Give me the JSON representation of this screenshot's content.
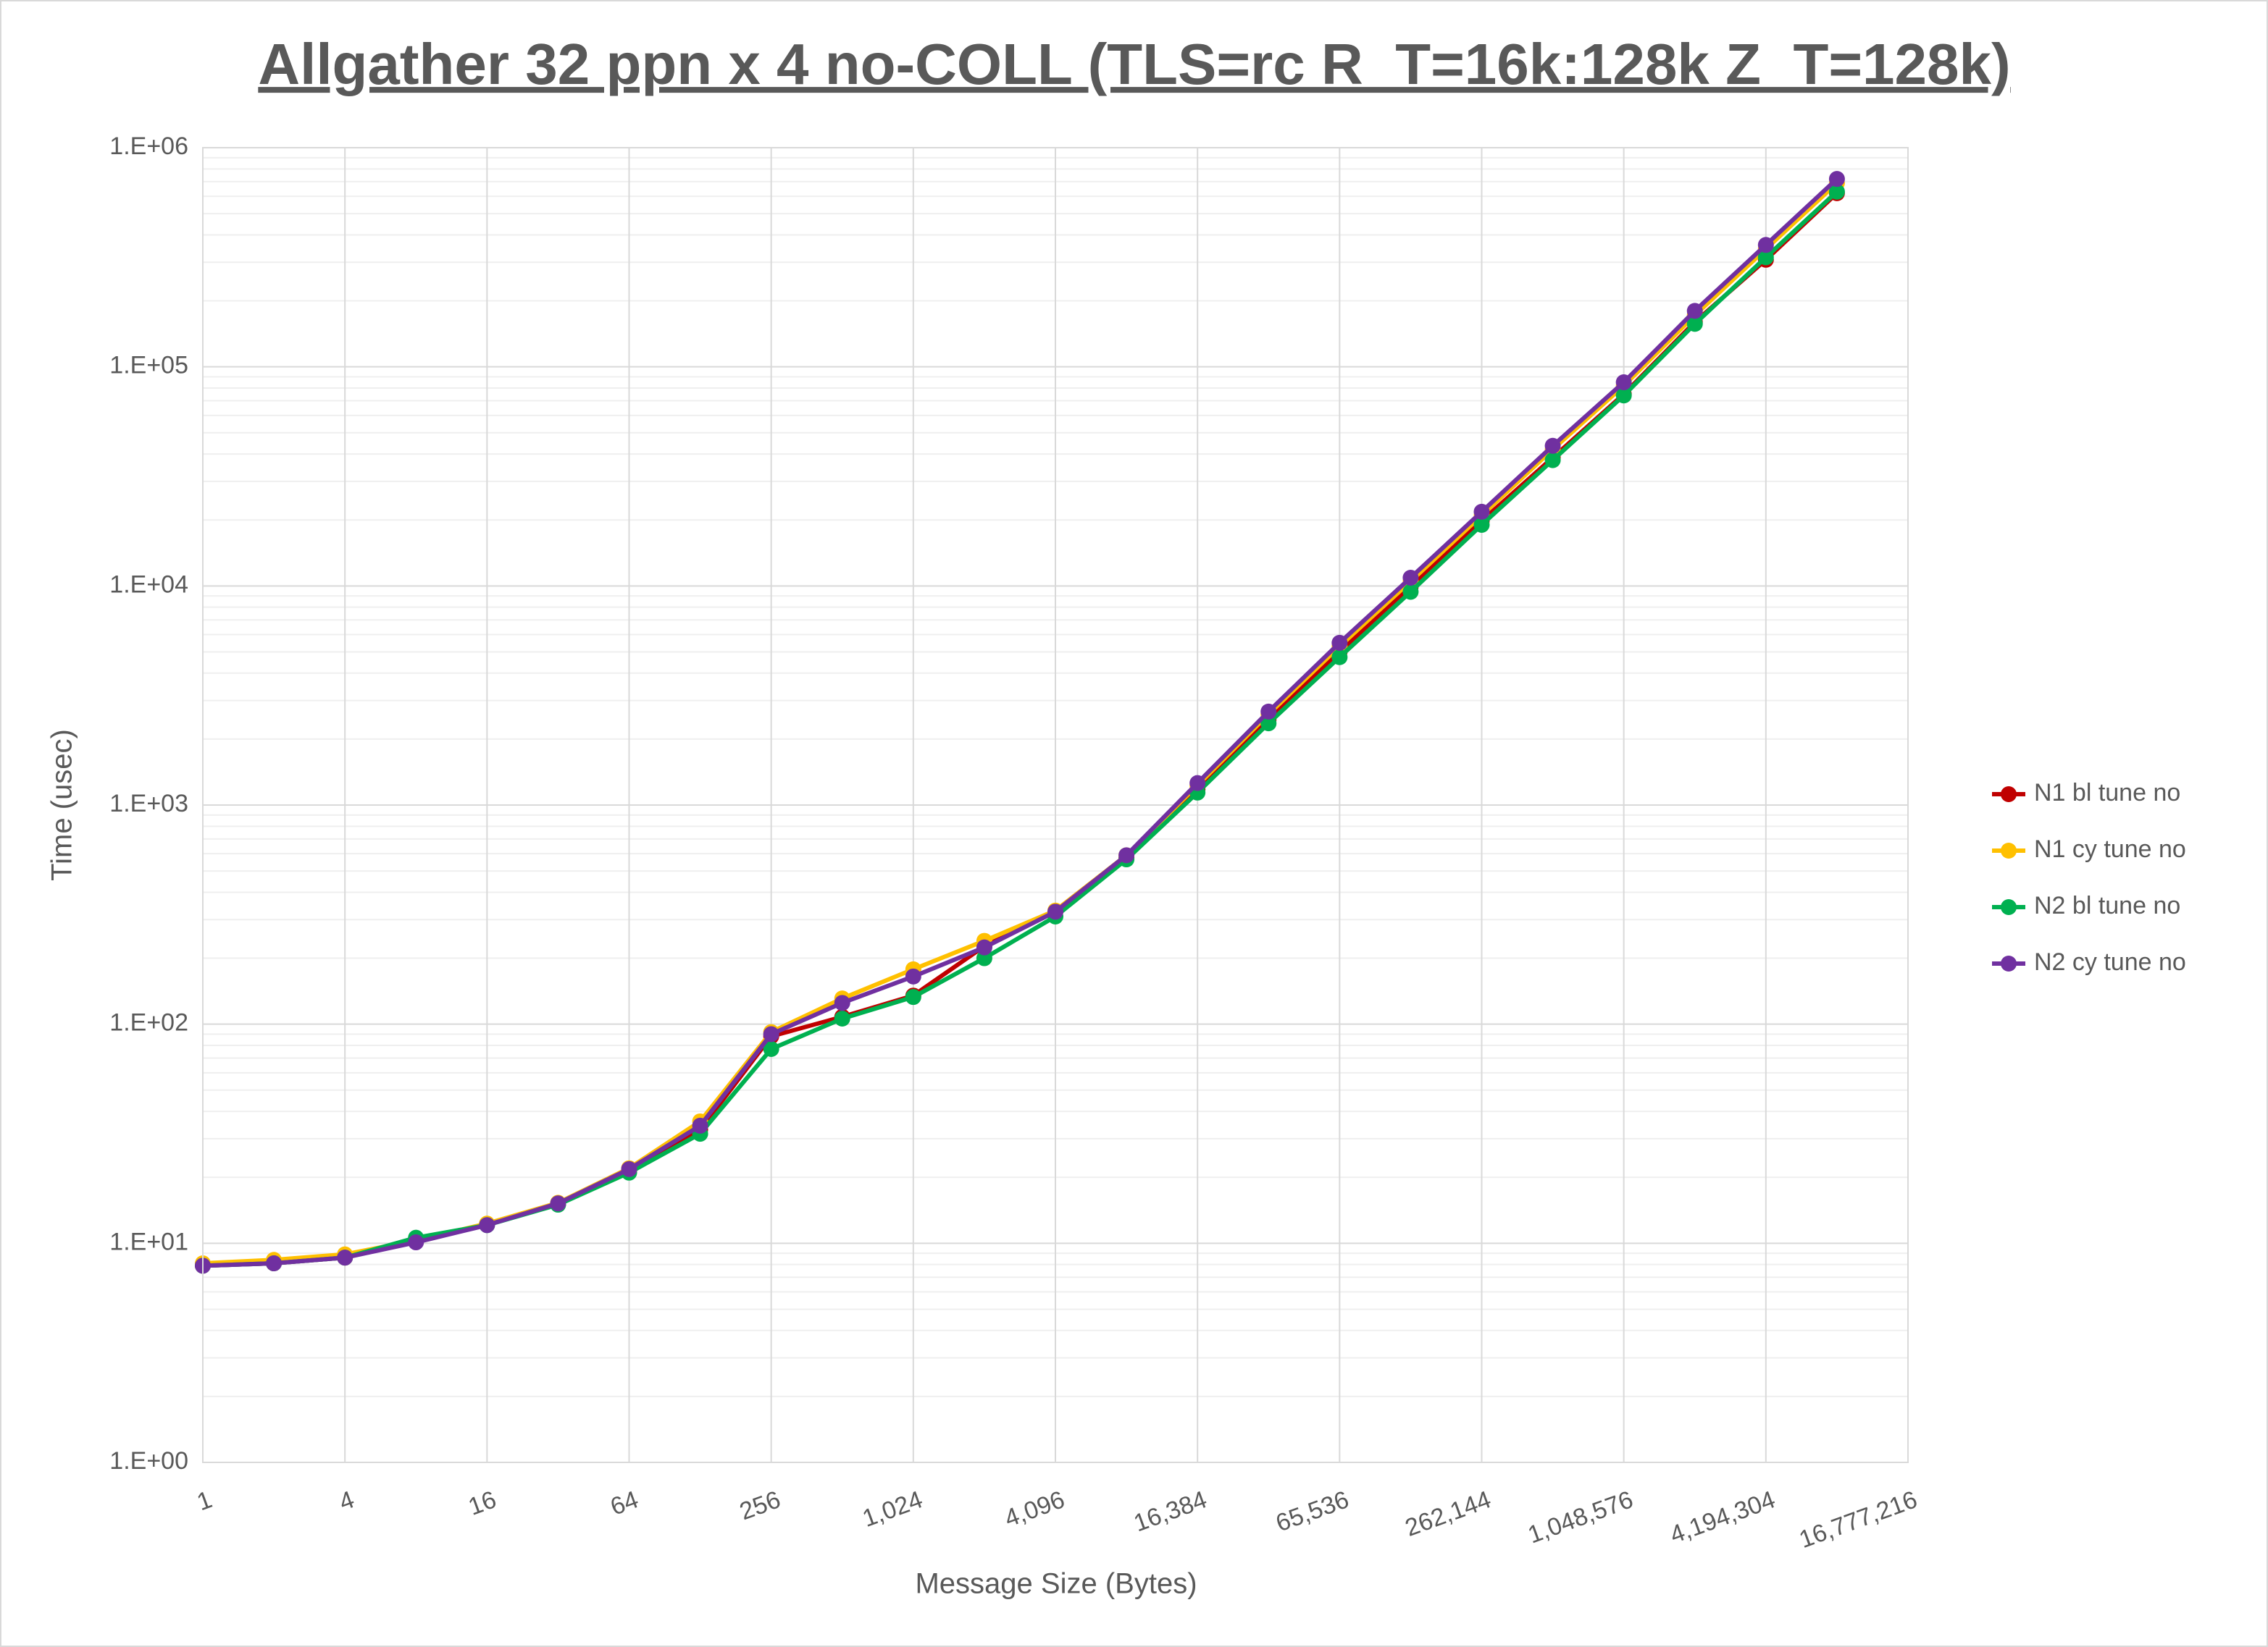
{
  "chart_data": {
    "type": "line",
    "title": "Allgather 32 ppn x 4 no-COLL (TLS=rc R_T=16k:128k Z_T=128k)",
    "x_label": "Message Size (Bytes)",
    "y_label": "Time (usec)",
    "x": [
      1,
      2,
      4,
      8,
      16,
      32,
      64,
      128,
      256,
      512,
      1024,
      2048,
      4096,
      8192,
      16384,
      32768,
      65536,
      131072,
      262144,
      524288,
      1048576,
      2097152,
      4194304,
      8388608
    ],
    "series": [
      {
        "name": "N1 bl tune no",
        "color": "#c00000",
        "values": [
          7.9,
          8.1,
          8.6,
          10.4,
          12.2,
          15.1,
          21.5,
          33,
          88,
          108,
          135,
          227,
          326,
          575,
          1180,
          2450,
          5000,
          9900,
          19800,
          38500,
          75000,
          160000,
          308000,
          620000
        ]
      },
      {
        "name": "N1 cy tune no",
        "color": "#ffc000",
        "values": [
          8.1,
          8.4,
          8.9,
          10.3,
          12.3,
          15.3,
          22,
          36,
          92,
          131,
          178,
          240,
          330,
          590,
          1230,
          2600,
          5300,
          10500,
          21000,
          42000,
          82000,
          172000,
          345000,
          690000
        ]
      },
      {
        "name": "N2 bl tune no",
        "color": "#00b050",
        "values": [
          7.9,
          8.1,
          8.6,
          10.6,
          12.1,
          15.0,
          21.0,
          31.6,
          77,
          106,
          133,
          200,
          310,
          565,
          1140,
          2360,
          4730,
          9400,
          19000,
          37500,
          74000,
          157000,
          316000,
          630000
        ]
      },
      {
        "name": "N2 cy tune no",
        "color": "#7030a0",
        "values": [
          7.9,
          8.1,
          8.6,
          10.1,
          12.1,
          15.2,
          21.8,
          34.4,
          90,
          125,
          165,
          224,
          326,
          590,
          1260,
          2670,
          5500,
          10900,
          21800,
          43600,
          85000,
          180000,
          360000,
          720000
        ]
      }
    ],
    "xscale": "log",
    "xbase": 2,
    "yscale": "log",
    "xlim": [
      1,
      16777216
    ],
    "xticks": [
      1,
      4,
      16,
      64,
      256,
      {
        "value": 1024,
        "label": "1,024"
      },
      {
        "value": 4096,
        "label": "4,096"
      },
      {
        "value": 16384,
        "label": "16,384"
      },
      {
        "value": 65536,
        "label": "65,536"
      },
      {
        "value": 262144,
        "label": "262,144"
      },
      {
        "value": 1048576,
        "label": "1,048,576"
      },
      {
        "value": 4194304,
        "label": "4,194,304"
      },
      {
        "value": 16777216,
        "label": "16,777,216"
      }
    ],
    "ylim": [
      1,
      1000000
    ],
    "yticks": [
      {
        "value": 1,
        "label": "1.E+00"
      },
      {
        "value": 10,
        "label": "1.E+01"
      },
      {
        "value": 100,
        "label": "1.E+02"
      },
      {
        "value": 1000,
        "label": "1.E+03"
      },
      {
        "value": 10000,
        "label": "1.E+04"
      },
      {
        "value": 100000,
        "label": "1.E+05"
      },
      {
        "value": 1000000,
        "label": "1.E+06"
      }
    ],
    "grid": true,
    "minor_grid": true,
    "legend": "right"
  }
}
